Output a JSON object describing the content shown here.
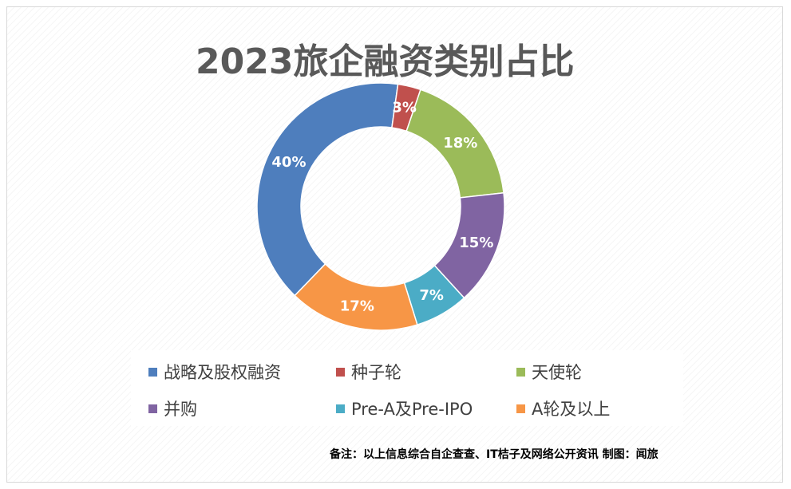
{
  "chart_data": {
    "type": "pie",
    "style": "donut",
    "title": "2023旅企融资类别占比",
    "categories": [
      "战略及股权融资",
      "种子轮",
      "天使轮",
      "并购",
      "Pre-A及Pre-IPO",
      "A轮及以上"
    ],
    "values": [
      40,
      3,
      18,
      15,
      7,
      17
    ],
    "data_labels": [
      "40%",
      "3%",
      "18%",
      "15%",
      "7%",
      "17%"
    ],
    "colors": [
      "#4e7ebd",
      "#c0504d",
      "#9bbb59",
      "#8064a2",
      "#4bacc6",
      "#f79646"
    ],
    "legend_position": "bottom"
  },
  "footnote": "备注：以上信息综合自企查查、IT桔子及网络公开资讯   制图：闻旅"
}
